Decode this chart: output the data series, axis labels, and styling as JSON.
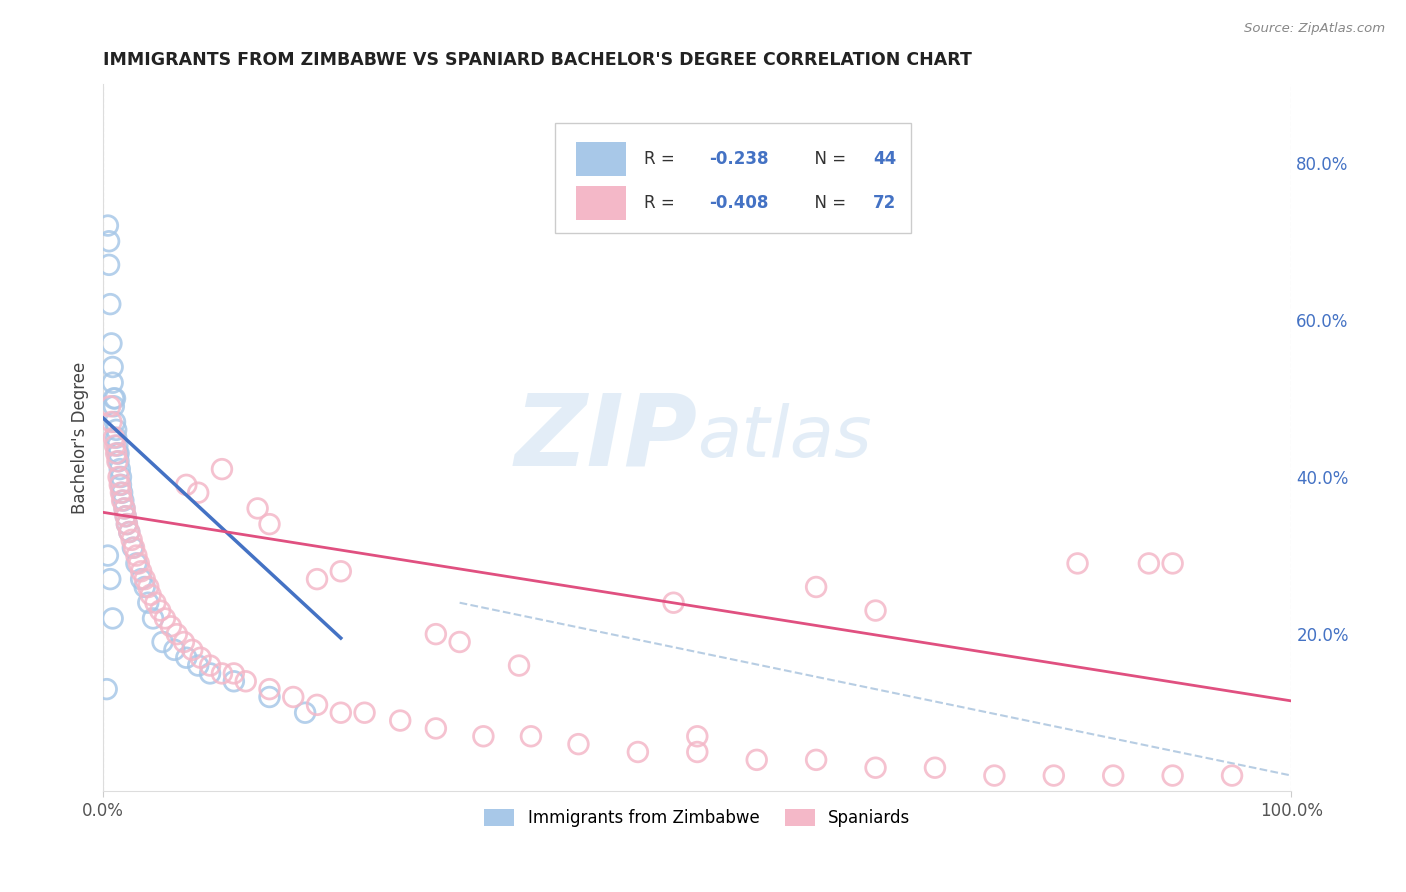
{
  "title": "IMMIGRANTS FROM ZIMBABWE VS SPANIARD BACHELOR'S DEGREE CORRELATION CHART",
  "source": "Source: ZipAtlas.com",
  "legend_R1": "R = ",
  "legend_R1_val": "-0.238",
  "legend_N1": "N = ",
  "legend_N1_val": "44",
  "legend_R2": "R = ",
  "legend_R2_val": "-0.408",
  "legend_N2": "N = ",
  "legend_N2_val": "72",
  "legend_label1": "Immigrants from Zimbabwe",
  "legend_label2": "Spaniards",
  "color_blue": "#a8c8e8",
  "color_pink": "#f4b8c8",
  "color_blue_line": "#4472c4",
  "color_pink_line": "#e05080",
  "color_dash": "#b0c8e0",
  "color_legend_val": "#4472c4",
  "color_legend_text": "#333333",
  "color_grid": "#cccccc",
  "color_right_axis": "#4472c4",
  "background": "#ffffff",
  "right_yticks": [
    "80.0%",
    "60.0%",
    "40.0%",
    "20.0%"
  ],
  "right_ytick_vals": [
    0.8,
    0.6,
    0.4,
    0.2
  ],
  "xlim": [
    0.0,
    1.0
  ],
  "ylim": [
    0.0,
    0.9
  ],
  "blue_x": [
    0.004,
    0.005,
    0.005,
    0.006,
    0.007,
    0.008,
    0.008,
    0.009,
    0.009,
    0.01,
    0.01,
    0.011,
    0.011,
    0.012,
    0.012,
    0.013,
    0.013,
    0.014,
    0.015,
    0.015,
    0.016,
    0.017,
    0.018,
    0.019,
    0.02,
    0.022,
    0.025,
    0.028,
    0.032,
    0.035,
    0.038,
    0.042,
    0.05,
    0.06,
    0.07,
    0.08,
    0.09,
    0.11,
    0.14,
    0.17,
    0.004,
    0.003,
    0.006,
    0.008
  ],
  "blue_y": [
    0.72,
    0.7,
    0.67,
    0.62,
    0.57,
    0.54,
    0.52,
    0.5,
    0.49,
    0.5,
    0.47,
    0.46,
    0.45,
    0.44,
    0.43,
    0.43,
    0.42,
    0.41,
    0.4,
    0.39,
    0.38,
    0.37,
    0.36,
    0.35,
    0.34,
    0.33,
    0.31,
    0.29,
    0.27,
    0.26,
    0.24,
    0.22,
    0.19,
    0.18,
    0.17,
    0.16,
    0.15,
    0.14,
    0.12,
    0.1,
    0.3,
    0.13,
    0.27,
    0.22
  ],
  "blue_trend_x": [
    0.0,
    0.2
  ],
  "blue_trend_y": [
    0.475,
    0.195
  ],
  "pink_trend_x": [
    0.0,
    1.0
  ],
  "pink_trend_y": [
    0.355,
    0.115
  ],
  "dash_line_x": [
    0.3,
    1.0
  ],
  "dash_line_y": [
    0.24,
    0.02
  ],
  "pink_x": [
    0.006,
    0.007,
    0.009,
    0.01,
    0.011,
    0.012,
    0.013,
    0.014,
    0.015,
    0.016,
    0.018,
    0.019,
    0.02,
    0.022,
    0.024,
    0.026,
    0.028,
    0.03,
    0.032,
    0.035,
    0.038,
    0.04,
    0.044,
    0.048,
    0.052,
    0.057,
    0.062,
    0.068,
    0.075,
    0.082,
    0.09,
    0.1,
    0.11,
    0.12,
    0.14,
    0.16,
    0.18,
    0.2,
    0.22,
    0.25,
    0.28,
    0.32,
    0.36,
    0.4,
    0.45,
    0.5,
    0.55,
    0.6,
    0.65,
    0.7,
    0.75,
    0.8,
    0.85,
    0.9,
    0.95,
    0.07,
    0.08,
    0.1,
    0.13,
    0.14,
    0.18,
    0.2,
    0.28,
    0.3,
    0.35,
    0.48,
    0.5,
    0.6,
    0.65,
    0.82,
    0.88,
    0.9
  ],
  "pink_y": [
    0.49,
    0.47,
    0.45,
    0.44,
    0.43,
    0.42,
    0.4,
    0.39,
    0.38,
    0.37,
    0.36,
    0.35,
    0.34,
    0.33,
    0.32,
    0.31,
    0.3,
    0.29,
    0.28,
    0.27,
    0.26,
    0.25,
    0.24,
    0.23,
    0.22,
    0.21,
    0.2,
    0.19,
    0.18,
    0.17,
    0.16,
    0.15,
    0.15,
    0.14,
    0.13,
    0.12,
    0.11,
    0.1,
    0.1,
    0.09,
    0.08,
    0.07,
    0.07,
    0.06,
    0.05,
    0.05,
    0.04,
    0.04,
    0.03,
    0.03,
    0.02,
    0.02,
    0.02,
    0.02,
    0.02,
    0.39,
    0.38,
    0.41,
    0.36,
    0.34,
    0.27,
    0.28,
    0.2,
    0.19,
    0.16,
    0.24,
    0.07,
    0.26,
    0.23,
    0.29,
    0.29,
    0.29
  ]
}
